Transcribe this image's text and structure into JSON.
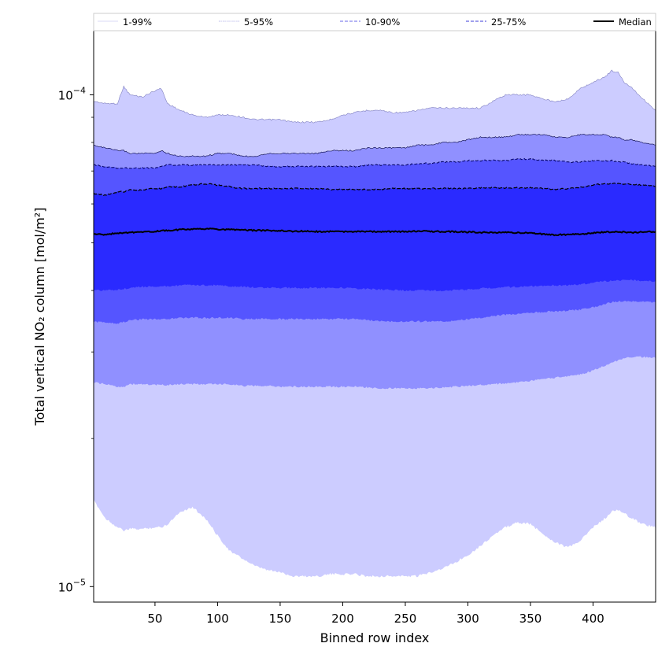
{
  "chart_data": {
    "type": "area",
    "xlabel": "Binned row index",
    "ylabel": "Total vertical NO₂ column [mol/m²]",
    "xlim": [
      1,
      450
    ],
    "ylim": [
      9.3e-06,
      0.000135
    ],
    "yscale": "log",
    "grid": false,
    "legend_placement": "top",
    "x_ticks": [
      50,
      100,
      150,
      200,
      250,
      300,
      350,
      400
    ],
    "x_tick_labels": [
      "50",
      "100",
      "150",
      "200",
      "250",
      "300",
      "350",
      "400"
    ],
    "y_ticks": [
      1e-05,
      0.0001
    ],
    "y_tick_labels": [
      {
        "base": "10",
        "exp": "−5"
      },
      {
        "base": "10",
        "exp": "−4"
      }
    ],
    "y_minor_ticks": [
      2e-05,
      3e-05,
      4e-05,
      5e-05,
      6e-05,
      7e-05,
      8e-05,
      9e-05
    ],
    "legend": [
      {
        "label": "1-99%",
        "color": "#e0e0f6",
        "dash": "solid"
      },
      {
        "label": "5-95%",
        "color": "#b0b0e8",
        "dash": "dotted"
      },
      {
        "label": "10-90%",
        "color": "#8888ee",
        "dash": "dashed"
      },
      {
        "label": "25-75%",
        "color": "#6464e0",
        "dash": "dashed"
      },
      {
        "label": "Median",
        "color": "#000000",
        "dash": "solid"
      }
    ],
    "x": [
      1,
      10,
      20,
      25,
      30,
      40,
      50,
      55,
      60,
      70,
      80,
      90,
      100,
      110,
      120,
      130,
      140,
      150,
      160,
      170,
      180,
      190,
      200,
      210,
      220,
      230,
      240,
      250,
      260,
      270,
      280,
      290,
      300,
      310,
      320,
      330,
      340,
      350,
      360,
      370,
      380,
      390,
      400,
      410,
      415,
      420,
      425,
      430,
      440,
      450
    ],
    "bands": [
      {
        "name": "1-99%",
        "color": "#ccccff",
        "upper": [
          9.7e-05,
          9.6e-05,
          9.6e-05,
          0.000104,
          0.0001,
          9.9e-05,
          0.000102,
          0.000103,
          9.6e-05,
          9.3e-05,
          9.1e-05,
          9e-05,
          9.1e-05,
          9.1e-05,
          9e-05,
          8.9e-05,
          8.9e-05,
          8.9e-05,
          8.8e-05,
          8.8e-05,
          8.8e-05,
          8.9e-05,
          9.1e-05,
          9.2e-05,
          9.3e-05,
          9.3e-05,
          9.2e-05,
          9.2e-05,
          9.3e-05,
          9.4e-05,
          9.4e-05,
          9.4e-05,
          9.4e-05,
          9.4e-05,
          9.7e-05,
          0.0001,
          0.0001,
          0.0001,
          9.8e-05,
          9.7e-05,
          9.8e-05,
          0.000103,
          0.000106,
          0.000109,
          0.000112,
          0.000111,
          0.000106,
          0.000104,
          9.8e-05,
          9.3e-05
        ],
        "lower": [
          1.5e-05,
          1.38e-05,
          1.32e-05,
          1.3e-05,
          1.31e-05,
          1.31e-05,
          1.32e-05,
          1.32e-05,
          1.34e-05,
          1.42e-05,
          1.45e-05,
          1.38e-05,
          1.27e-05,
          1.18e-05,
          1.14e-05,
          1.1e-05,
          1.08e-05,
          1.07e-05,
          1.05e-05,
          1.05e-05,
          1.05e-05,
          1.06e-05,
          1.06e-05,
          1.06e-05,
          1.05e-05,
          1.05e-05,
          1.05e-05,
          1.05e-05,
          1.05e-05,
          1.07e-05,
          1.09e-05,
          1.12e-05,
          1.16e-05,
          1.21e-05,
          1.27e-05,
          1.32e-05,
          1.35e-05,
          1.34e-05,
          1.28e-05,
          1.23e-05,
          1.2e-05,
          1.24e-05,
          1.32e-05,
          1.38e-05,
          1.42e-05,
          1.43e-05,
          1.41e-05,
          1.38e-05,
          1.34e-05,
          1.32e-05
        ]
      },
      {
        "name": "5-95%",
        "color": "#9090ff",
        "upper": [
          7.9e-05,
          7.8e-05,
          7.7e-05,
          7.7e-05,
          7.6e-05,
          7.6e-05,
          7.6e-05,
          7.7e-05,
          7.6e-05,
          7.5e-05,
          7.5e-05,
          7.5e-05,
          7.6e-05,
          7.6e-05,
          7.5e-05,
          7.5e-05,
          7.6e-05,
          7.6e-05,
          7.6e-05,
          7.6e-05,
          7.6e-05,
          7.7e-05,
          7.7e-05,
          7.7e-05,
          7.8e-05,
          7.8e-05,
          7.8e-05,
          7.8e-05,
          7.9e-05,
          7.9e-05,
          8e-05,
          8e-05,
          8.1e-05,
          8.2e-05,
          8.2e-05,
          8.2e-05,
          8.3e-05,
          8.3e-05,
          8.3e-05,
          8.2e-05,
          8.2e-05,
          8.3e-05,
          8.3e-05,
          8.3e-05,
          8.2e-05,
          8.2e-05,
          8.1e-05,
          8.1e-05,
          8e-05,
          7.9e-05
        ],
        "lower": [
          2.6e-05,
          2.58e-05,
          2.55e-05,
          2.55e-05,
          2.58e-05,
          2.58e-05,
          2.57e-05,
          2.57e-05,
          2.57e-05,
          2.58e-05,
          2.58e-05,
          2.58e-05,
          2.58e-05,
          2.58e-05,
          2.56e-05,
          2.56e-05,
          2.56e-05,
          2.55e-05,
          2.55e-05,
          2.55e-05,
          2.55e-05,
          2.55e-05,
          2.55e-05,
          2.55e-05,
          2.54e-05,
          2.53e-05,
          2.53e-05,
          2.53e-05,
          2.53e-05,
          2.53e-05,
          2.54e-05,
          2.55e-05,
          2.56e-05,
          2.57e-05,
          2.58e-05,
          2.59e-05,
          2.6e-05,
          2.62e-05,
          2.64e-05,
          2.66e-05,
          2.68e-05,
          2.7e-05,
          2.75e-05,
          2.82e-05,
          2.86e-05,
          2.88e-05,
          2.92e-05,
          2.93e-05,
          2.93e-05,
          2.92e-05
        ]
      },
      {
        "name": "10-90%",
        "color": "#5555ff",
        "upper": [
          7.2e-05,
          7.15e-05,
          7.1e-05,
          7.1e-05,
          7.1e-05,
          7.1e-05,
          7.1e-05,
          7.15e-05,
          7.2e-05,
          7.2e-05,
          7.2e-05,
          7.2e-05,
          7.2e-05,
          7.2e-05,
          7.2e-05,
          7.2e-05,
          7.15e-05,
          7.15e-05,
          7.15e-05,
          7.15e-05,
          7.15e-05,
          7.15e-05,
          7.15e-05,
          7.15e-05,
          7.2e-05,
          7.2e-05,
          7.2e-05,
          7.2e-05,
          7.25e-05,
          7.25e-05,
          7.3e-05,
          7.3e-05,
          7.35e-05,
          7.35e-05,
          7.35e-05,
          7.35e-05,
          7.4e-05,
          7.4e-05,
          7.35e-05,
          7.35e-05,
          7.3e-05,
          7.3e-05,
          7.35e-05,
          7.35e-05,
          7.35e-05,
          7.3e-05,
          7.3e-05,
          7.25e-05,
          7.2e-05,
          7.15e-05
        ],
        "lower": [
          3.45e-05,
          3.45e-05,
          3.43e-05,
          3.45e-05,
          3.48e-05,
          3.5e-05,
          3.5e-05,
          3.5e-05,
          3.5e-05,
          3.52e-05,
          3.52e-05,
          3.52e-05,
          3.52e-05,
          3.52e-05,
          3.5e-05,
          3.5e-05,
          3.5e-05,
          3.5e-05,
          3.5e-05,
          3.5e-05,
          3.5e-05,
          3.5e-05,
          3.5e-05,
          3.5e-05,
          3.48e-05,
          3.47e-05,
          3.46e-05,
          3.46e-05,
          3.46e-05,
          3.46e-05,
          3.46e-05,
          3.47e-05,
          3.5e-05,
          3.52e-05,
          3.55e-05,
          3.57e-05,
          3.58e-05,
          3.6e-05,
          3.62e-05,
          3.63e-05,
          3.64e-05,
          3.66e-05,
          3.7e-05,
          3.76e-05,
          3.79e-05,
          3.8e-05,
          3.8e-05,
          3.8e-05,
          3.8e-05,
          3.78e-05
        ]
      },
      {
        "name": "25-75%",
        "color": "#2a2aff",
        "upper": [
          6.3e-05,
          6.25e-05,
          6.35e-05,
          6.35e-05,
          6.4e-05,
          6.4e-05,
          6.45e-05,
          6.45e-05,
          6.5e-05,
          6.5e-05,
          6.55e-05,
          6.6e-05,
          6.55e-05,
          6.5e-05,
          6.45e-05,
          6.45e-05,
          6.45e-05,
          6.45e-05,
          6.45e-05,
          6.45e-05,
          6.45e-05,
          6.42e-05,
          6.42e-05,
          6.42e-05,
          6.42e-05,
          6.42e-05,
          6.45e-05,
          6.45e-05,
          6.45e-05,
          6.45e-05,
          6.45e-05,
          6.45e-05,
          6.45e-05,
          6.47e-05,
          6.47e-05,
          6.47e-05,
          6.47e-05,
          6.47e-05,
          6.45e-05,
          6.42e-05,
          6.45e-05,
          6.48e-05,
          6.55e-05,
          6.6e-05,
          6.6e-05,
          6.6e-05,
          6.58e-05,
          6.58e-05,
          6.55e-05,
          6.52e-05
        ],
        "lower": [
          4e-05,
          4e-05,
          4.02e-05,
          4.03e-05,
          4.05e-05,
          4.07e-05,
          4.08e-05,
          4.08e-05,
          4.08e-05,
          4.1e-05,
          4.1e-05,
          4.1e-05,
          4.1e-05,
          4.08e-05,
          4.07e-05,
          4.06e-05,
          4.05e-05,
          4.05e-05,
          4.05e-05,
          4.05e-05,
          4.05e-05,
          4.05e-05,
          4.05e-05,
          4.04e-05,
          4.03e-05,
          4.02e-05,
          4.01e-05,
          4e-05,
          4e-05,
          4e-05,
          4e-05,
          4.01e-05,
          4.02e-05,
          4.04e-05,
          4.05e-05,
          4.06e-05,
          4.07e-05,
          4.08e-05,
          4.09e-05,
          4.1e-05,
          4.1e-05,
          4.12e-05,
          4.15e-05,
          4.18e-05,
          4.19e-05,
          4.2e-05,
          4.2e-05,
          4.2e-05,
          4.18e-05,
          4.17e-05
        ]
      }
    ],
    "median": [
      5.2e-05,
      5.2e-05,
      5.23e-05,
      5.24e-05,
      5.25e-05,
      5.26e-05,
      5.27e-05,
      5.29e-05,
      5.3e-05,
      5.32e-05,
      5.33e-05,
      5.34e-05,
      5.33e-05,
      5.32e-05,
      5.31e-05,
      5.3e-05,
      5.3e-05,
      5.29e-05,
      5.28e-05,
      5.28e-05,
      5.27e-05,
      5.27e-05,
      5.27e-05,
      5.27e-05,
      5.27e-05,
      5.27e-05,
      5.27e-05,
      5.27e-05,
      5.28e-05,
      5.28e-05,
      5.27e-05,
      5.27e-05,
      5.26e-05,
      5.25e-05,
      5.25e-05,
      5.25e-05,
      5.24e-05,
      5.23e-05,
      5.21e-05,
      5.19e-05,
      5.2e-05,
      5.21e-05,
      5.24e-05,
      5.26e-05,
      5.26e-05,
      5.26e-05,
      5.26e-05,
      5.25e-05,
      5.26e-05,
      5.27e-05
    ]
  }
}
